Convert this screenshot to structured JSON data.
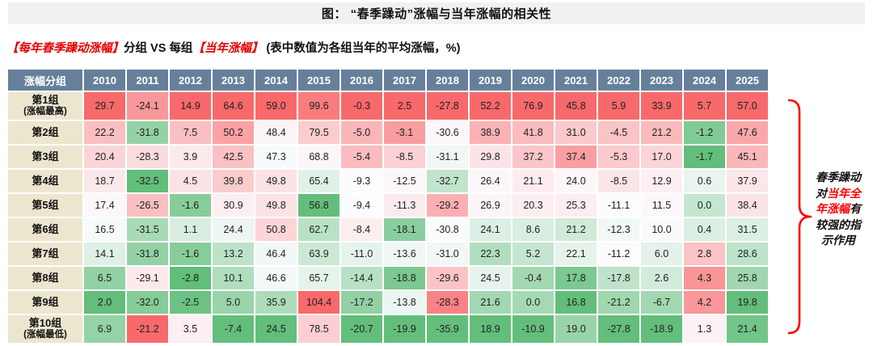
{
  "title": "图：  “春季躁动”涨幅与当年涨幅的相关性",
  "subtitle": {
    "part1": "【每年春季躁动涨幅】",
    "part2": "分组 VS 每组",
    "part3": "【当年涨幅】",
    "part4": "  (表中数值为各组当年的平均涨幅，%)"
  },
  "chart_data": {
    "type": "heatmap",
    "corner_header": "涨幅分组",
    "columns": [
      "2010",
      "2011",
      "2012",
      "2013",
      "2014",
      "2015",
      "2016",
      "2017",
      "2018",
      "2019",
      "2020",
      "2021",
      "2022",
      "2023",
      "2024",
      "2025"
    ],
    "rows": [
      {
        "label": "第1组",
        "sublabel": "(涨幅最高)",
        "values": [
          29.7,
          -24.1,
          14.9,
          64.6,
          59.0,
          99.6,
          -0.3,
          2.5,
          -27.8,
          52.2,
          76.9,
          45.8,
          5.9,
          33.9,
          5.7,
          57.0
        ]
      },
      {
        "label": "第2组",
        "sublabel": "",
        "values": [
          22.2,
          -31.8,
          7.5,
          50.2,
          48.4,
          79.5,
          -5.0,
          -3.1,
          -30.6,
          38.9,
          41.8,
          31.0,
          -4.5,
          21.2,
          -1.2,
          47.6
        ]
      },
      {
        "label": "第3组",
        "sublabel": "",
        "values": [
          20.4,
          -28.3,
          3.9,
          42.5,
          47.3,
          68.8,
          -5.4,
          -8.5,
          -31.1,
          29.8,
          37.2,
          37.4,
          -5.3,
          17.0,
          -1.7,
          45.1
        ]
      },
      {
        "label": "第4组",
        "sublabel": "",
        "values": [
          18.7,
          -32.5,
          4.5,
          39.8,
          49.8,
          65.4,
          -9.3,
          -12.5,
          -32.7,
          26.4,
          21.1,
          24.0,
          -8.5,
          12.9,
          0.6,
          37.9
        ]
      },
      {
        "label": "第5组",
        "sublabel": "",
        "values": [
          17.4,
          -26.5,
          -1.6,
          30.9,
          49.8,
          56.8,
          -9.4,
          -11.3,
          -29.2,
          26.9,
          20.3,
          25.3,
          -11.1,
          11.5,
          0.0,
          38.4
        ]
      },
      {
        "label": "第6组",
        "sublabel": "",
        "values": [
          16.5,
          -31.5,
          1.1,
          24.4,
          50.8,
          62.7,
          -8.4,
          -18.1,
          -30.8,
          24.1,
          8.6,
          21.2,
          -12.3,
          10.0,
          0.4,
          31.5
        ]
      },
      {
        "label": "第7组",
        "sublabel": "",
        "values": [
          14.1,
          -31.8,
          -1.6,
          13.2,
          46.4,
          63.9,
          -11.0,
          -13.6,
          -31.0,
          22.3,
          5.2,
          22.1,
          -11.2,
          6.0,
          2.8,
          28.6
        ]
      },
      {
        "label": "第8组",
        "sublabel": "",
        "values": [
          6.5,
          -29.1,
          -2.8,
          10.1,
          46.6,
          65.7,
          -14.4,
          -18.8,
          -29.6,
          24.5,
          -0.4,
          17.8,
          -17.8,
          2.6,
          4.3,
          25.8
        ]
      },
      {
        "label": "第9组",
        "sublabel": "",
        "values": [
          2.0,
          -32.0,
          -2.5,
          5.0,
          35.9,
          104.4,
          -17.2,
          -13.8,
          -28.3,
          21.6,
          0.0,
          16.8,
          -21.2,
          -6.7,
          4.2,
          19.8
        ]
      },
      {
        "label": "第10组",
        "sublabel": "(涨幅最低)",
        "values": [
          6.9,
          -21.2,
          3.5,
          -7.4,
          24.5,
          78.5,
          -20.7,
          -19.9,
          -35.9,
          18.9,
          -10.9,
          19.0,
          -27.8,
          -18.9,
          1.3,
          21.4
        ]
      }
    ],
    "color_scale": {
      "description": "per-column 3-color scale: highest=red, median=white, lowest=green",
      "high": "#F8696B",
      "mid": "#FCFCFF",
      "low": "#63BE7B",
      "header_bg": "#66809B",
      "rowlabel_bg": "#EDE6CF"
    }
  },
  "annotation": {
    "segments": [
      {
        "text": "春季躁动对",
        "red": false
      },
      {
        "text": "当年全年涨幅",
        "red": true
      },
      {
        "text": "有较强的指示作用",
        "red": false
      }
    ],
    "brace_color": "#ff0000"
  }
}
